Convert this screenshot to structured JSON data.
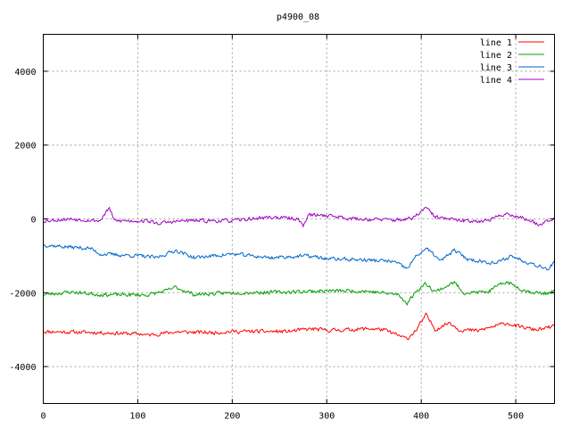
{
  "chart_data": {
    "type": "line",
    "title": "p4900_08",
    "xlabel": "",
    "ylabel": "",
    "xlim": [
      0,
      541
    ],
    "ylim": [
      -5000,
      5000
    ],
    "x_ticks": [
      0,
      100,
      200,
      300,
      400,
      500
    ],
    "y_ticks": [
      -4000,
      -2000,
      0,
      2000,
      4000
    ],
    "grid": true,
    "legend_position": "top-right",
    "series": [
      {
        "name": "line 1",
        "color": "#ff0000",
        "base": -3050,
        "noise": 45,
        "seed": 11,
        "keypoints": [
          [
            0,
            -3050
          ],
          [
            60,
            -3080
          ],
          [
            105,
            -3120
          ],
          [
            110,
            -3150
          ],
          [
            140,
            -3060
          ],
          [
            180,
            -3080
          ],
          [
            200,
            -3050
          ],
          [
            260,
            -3050
          ],
          [
            275,
            -3000
          ],
          [
            285,
            -2980
          ],
          [
            300,
            -3020
          ],
          [
            325,
            -3000
          ],
          [
            345,
            -2970
          ],
          [
            360,
            -3000
          ],
          [
            385,
            -3250
          ],
          [
            395,
            -3000
          ],
          [
            405,
            -2600
          ],
          [
            415,
            -3000
          ],
          [
            430,
            -2800
          ],
          [
            440,
            -3000
          ],
          [
            460,
            -3030
          ],
          [
            490,
            -2820
          ],
          [
            500,
            -2900
          ],
          [
            520,
            -3000
          ],
          [
            530,
            -2980
          ],
          [
            541,
            -2900
          ]
        ]
      },
      {
        "name": "line 2",
        "color": "#00a000",
        "base": -2000,
        "noise": 45,
        "seed": 23,
        "keypoints": [
          [
            0,
            -2050
          ],
          [
            30,
            -1980
          ],
          [
            60,
            -2050
          ],
          [
            110,
            -2060
          ],
          [
            130,
            -1950
          ],
          [
            140,
            -1850
          ],
          [
            160,
            -2050
          ],
          [
            200,
            -2000
          ],
          [
            260,
            -1980
          ],
          [
            280,
            -1960
          ],
          [
            300,
            -1950
          ],
          [
            340,
            -1950
          ],
          [
            375,
            -2050
          ],
          [
            385,
            -2280
          ],
          [
            395,
            -1950
          ],
          [
            405,
            -1750
          ],
          [
            415,
            -1970
          ],
          [
            435,
            -1720
          ],
          [
            445,
            -2000
          ],
          [
            470,
            -1980
          ],
          [
            490,
            -1700
          ],
          [
            510,
            -1950
          ],
          [
            530,
            -2030
          ],
          [
            541,
            -1950
          ]
        ]
      },
      {
        "name": "line 3",
        "color": "#0066cc",
        "base": -900,
        "noise": 45,
        "seed": 37,
        "keypoints": [
          [
            0,
            -700
          ],
          [
            20,
            -750
          ],
          [
            50,
            -800
          ],
          [
            60,
            -950
          ],
          [
            100,
            -1000
          ],
          [
            120,
            -1050
          ],
          [
            140,
            -850
          ],
          [
            160,
            -1050
          ],
          [
            200,
            -950
          ],
          [
            240,
            -1050
          ],
          [
            280,
            -1000
          ],
          [
            300,
            -1080
          ],
          [
            330,
            -1100
          ],
          [
            370,
            -1150
          ],
          [
            385,
            -1350
          ],
          [
            395,
            -1000
          ],
          [
            405,
            -800
          ],
          [
            415,
            -1000
          ],
          [
            420,
            -1150
          ],
          [
            435,
            -850
          ],
          [
            450,
            -1100
          ],
          [
            480,
            -1200
          ],
          [
            495,
            -1000
          ],
          [
            510,
            -1150
          ],
          [
            535,
            -1350
          ],
          [
            541,
            -1150
          ]
        ]
      },
      {
        "name": "line 4",
        "color": "#a000c0",
        "base": -20,
        "noise": 45,
        "seed": 53,
        "keypoints": [
          [
            0,
            -50
          ],
          [
            30,
            0
          ],
          [
            60,
            -50
          ],
          [
            70,
            300
          ],
          [
            75,
            -50
          ],
          [
            110,
            -50
          ],
          [
            120,
            -120
          ],
          [
            150,
            -50
          ],
          [
            200,
            -50
          ],
          [
            240,
            50
          ],
          [
            270,
            0
          ],
          [
            275,
            -200
          ],
          [
            280,
            100
          ],
          [
            300,
            100
          ],
          [
            330,
            0
          ],
          [
            370,
            -30
          ],
          [
            390,
            0
          ],
          [
            405,
            300
          ],
          [
            415,
            50
          ],
          [
            440,
            -50
          ],
          [
            470,
            -50
          ],
          [
            490,
            150
          ],
          [
            510,
            0
          ],
          [
            525,
            -150
          ],
          [
            541,
            50
          ]
        ]
      }
    ]
  }
}
